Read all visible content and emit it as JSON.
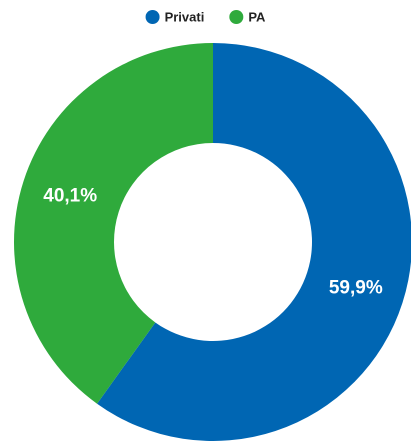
{
  "chart_data": {
    "type": "donut",
    "categories": [
      "Privati",
      "PA"
    ],
    "values": [
      59.9,
      40.1
    ],
    "value_labels": [
      "59,9%",
      "40,1%"
    ],
    "colors": [
      "#0066b3",
      "#2faa3c"
    ],
    "legend": "top"
  }
}
